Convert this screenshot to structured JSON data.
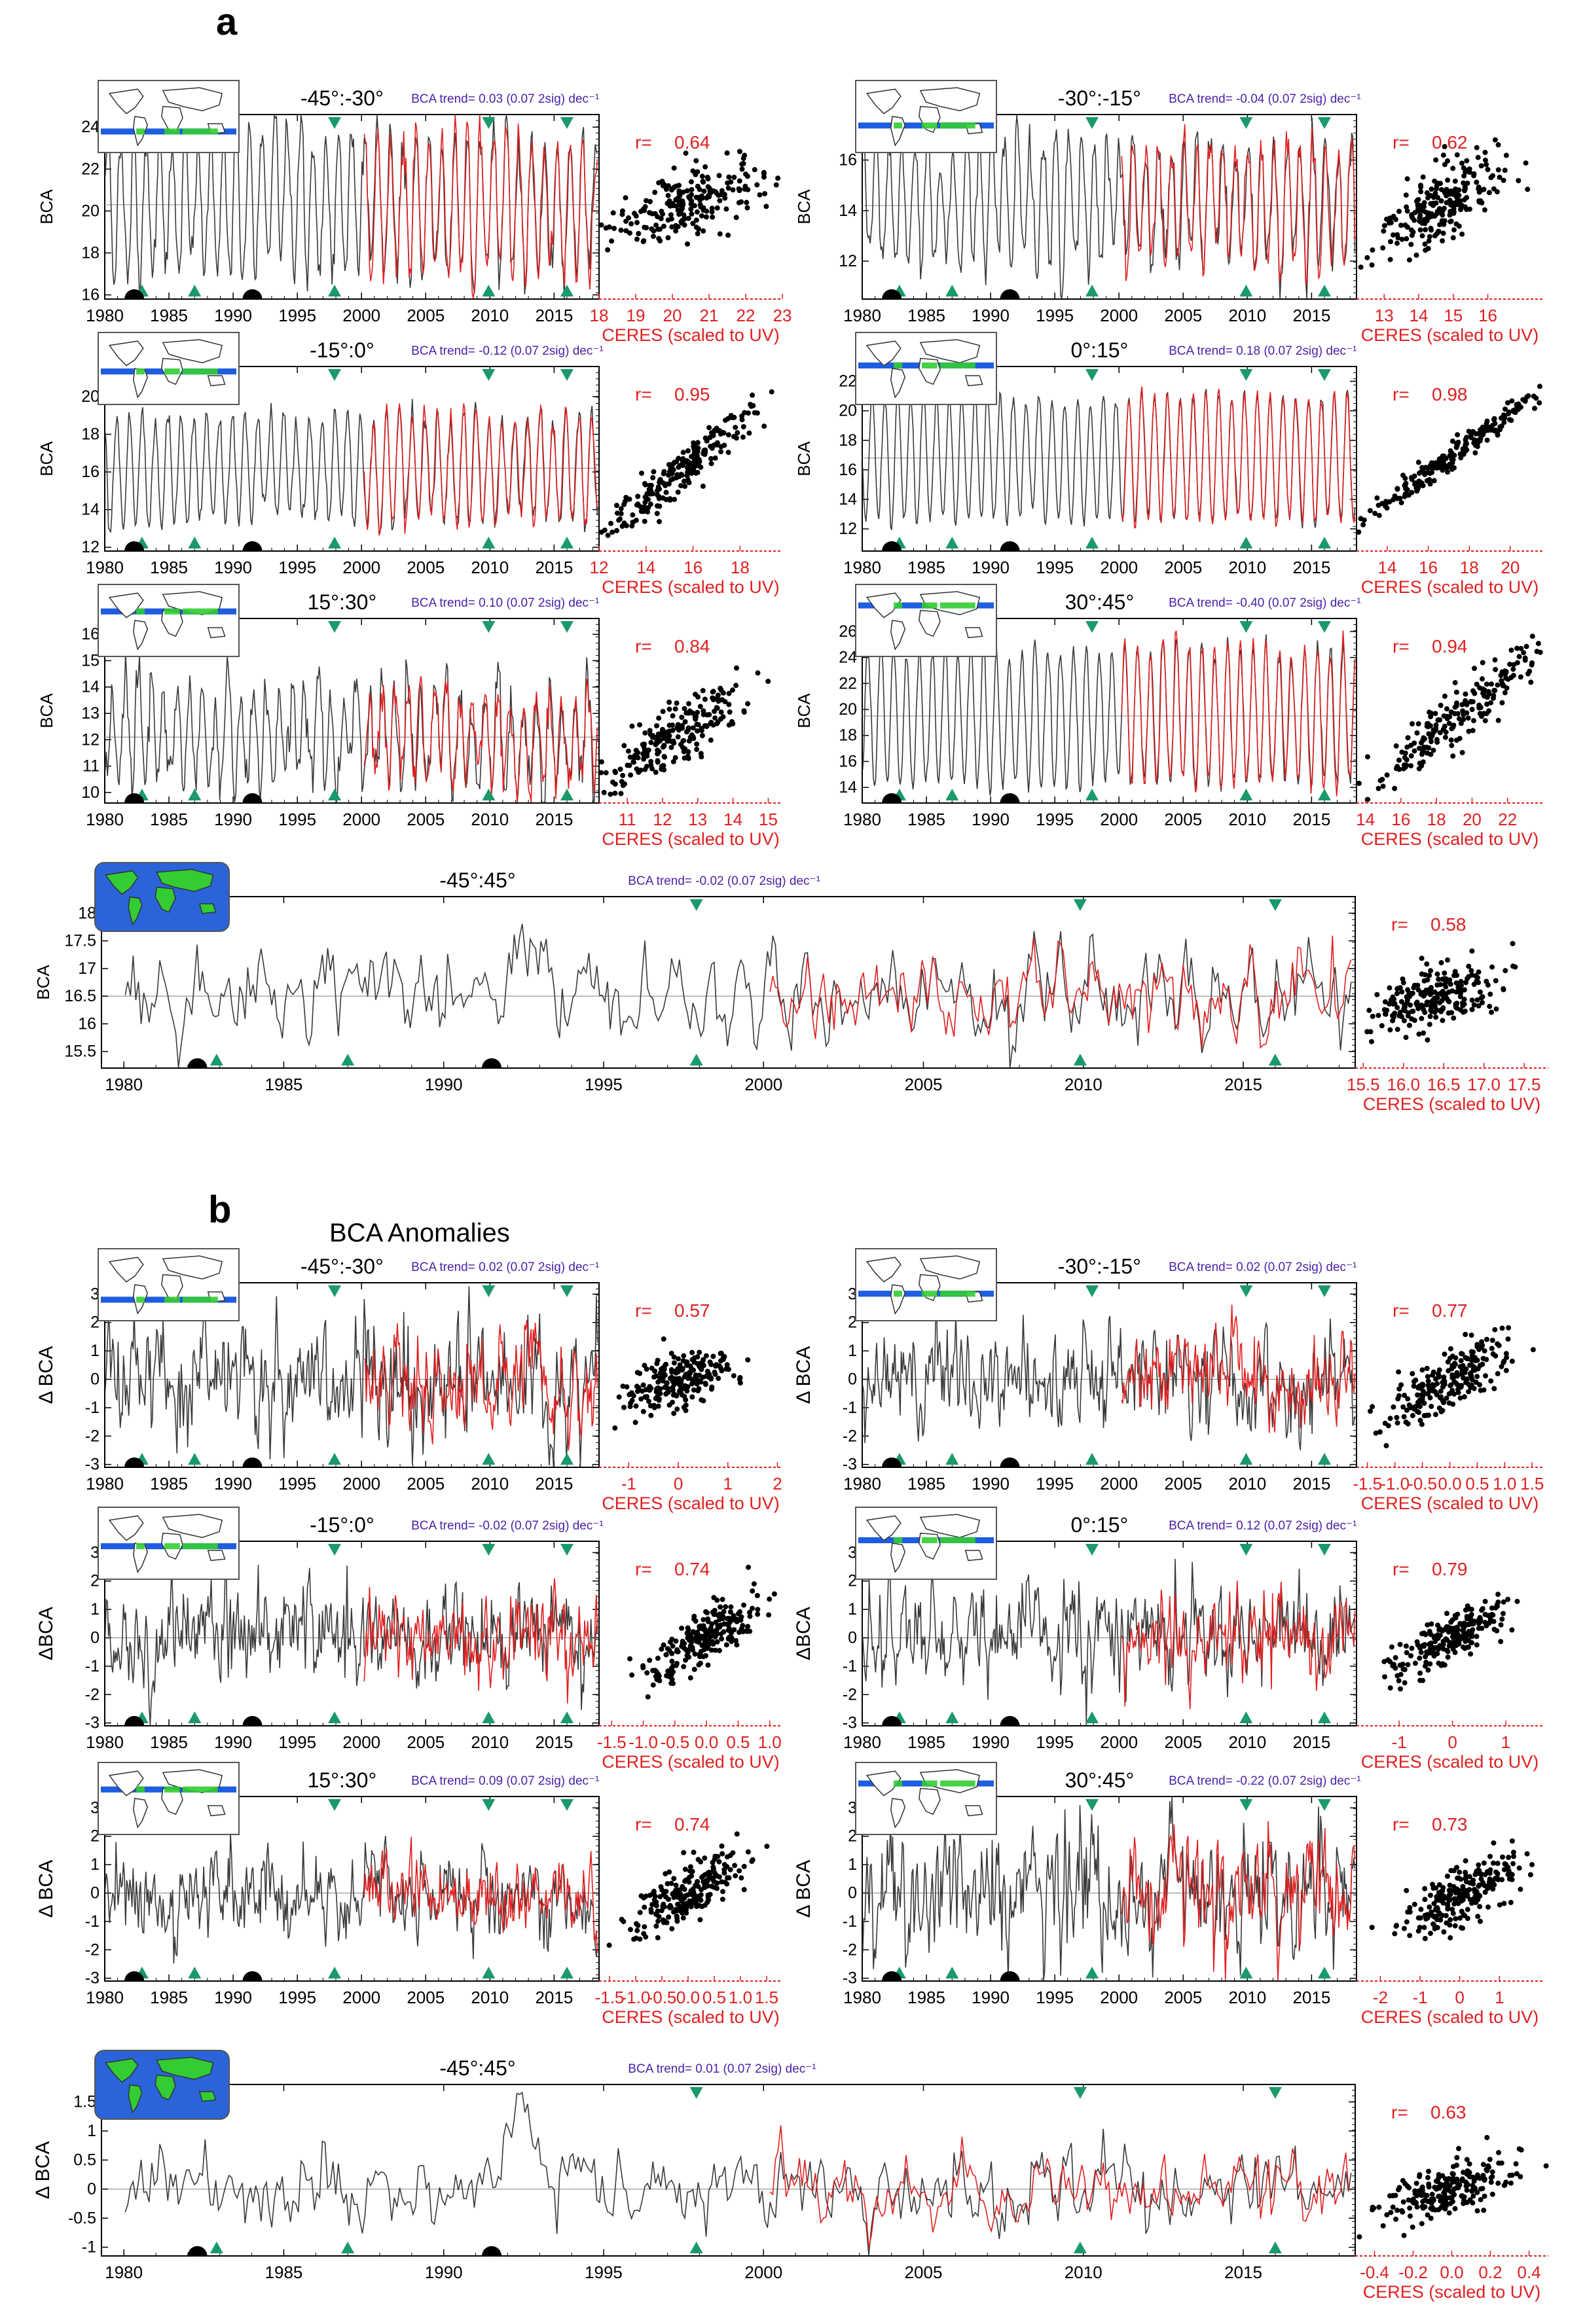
{
  "figure": {
    "section_a": {
      "letter": "a",
      "title": ""
    },
    "section_b": {
      "letter": "b",
      "title": "BCA Anomalies"
    }
  },
  "colors": {
    "bca_line": "#3a3a3a",
    "ceres_line": "#e02020",
    "trend_text": "#4b1fa8",
    "r_text": "#e02020",
    "triangle": "#1a9a6a",
    "volcano": "#000000",
    "ocean_full": "#2a64d8",
    "land": "#33cc33",
    "band": "#1f5de0"
  },
  "labels": {
    "ceres_axis": "CERES (scaled to UV)",
    "bca_axis": "BCA",
    "dbca_axis": "Δ BCA",
    "r_prefix": "r=",
    "trend_unit": "dec⁻¹"
  },
  "chart_data": [
    {
      "id": "a1",
      "section": "a",
      "type": "line",
      "title": "-45°:-30°",
      "trend": "BCA trend=  0.03 (0.07 2sig)  dec⁻¹",
      "r": "0.64",
      "ylabel": "BCA",
      "xlim": [
        1980,
        2018.5
      ],
      "xticks": [
        1980,
        1985,
        1990,
        1995,
        2000,
        2005,
        2010,
        2015
      ],
      "ylim": [
        15.8,
        24.6
      ],
      "yticks": [
        16,
        18,
        20,
        22,
        24
      ],
      "mean": 20.3,
      "amp": 3.2,
      "noise": 0.6,
      "ceres_start": 2000.2,
      "volcanoes": [
        1982.3,
        1991.5
      ],
      "triangles_up": [
        1982.9,
        1987.0,
        1997.9,
        2009.9,
        2016.0
      ],
      "triangles_down": [
        1997.9,
        2009.9,
        2016.0
      ],
      "scatter_xlim": [
        18,
        23
      ],
      "scatter_xticks": [
        "18",
        "19",
        "20",
        "21",
        "22",
        "23"
      ],
      "scatter_ylim": [
        15.8,
        24.6
      ],
      "scatter_slope": 1.0,
      "scatter_xmean": 20.4,
      "scatter_xsd": 1.1,
      "scatter_n": 220,
      "band_lat": [
        -45,
        -30
      ]
    },
    {
      "id": "a2",
      "section": "a",
      "type": "line",
      "title": "-30°:-15°",
      "trend": "BCA trend= -0.04 (0.07 2sig)  dec⁻¹",
      "r": "0.62",
      "ylabel": "BCA",
      "xlim": [
        1980,
        2018.5
      ],
      "xticks": [
        1980,
        1985,
        1990,
        1995,
        2000,
        2005,
        2010,
        2015
      ],
      "ylim": [
        10.5,
        17.8
      ],
      "yticks": [
        12,
        14,
        16
      ],
      "mean": 14.2,
      "amp": 2.3,
      "noise": 0.5,
      "ceres_start": 2000.2,
      "volcanoes": [
        1982.3,
        1991.5
      ],
      "triangles_up": [
        1982.9,
        1987.0,
        1997.9,
        2009.9,
        2016.0
      ],
      "triangles_down": [
        1997.9,
        2009.9,
        2016.0
      ],
      "scatter_xlim": [
        12.2,
        17.6
      ],
      "scatter_xticks": [
        "13",
        "14",
        "15",
        "16"
      ],
      "scatter_ylim": [
        10.5,
        17.8
      ],
      "scatter_slope": 1.1,
      "scatter_xmean": 14.6,
      "scatter_xsd": 0.9,
      "scatter_n": 220,
      "band_lat": [
        -30,
        -15
      ]
    },
    {
      "id": "a3",
      "section": "a",
      "type": "line",
      "title": "-15°:0°",
      "trend": "BCA trend= -0.12 (0.07 2sig)  dec⁻¹",
      "r": "0.95",
      "ylabel": "BCA",
      "xlim": [
        1980,
        2018.5
      ],
      "xticks": [
        1980,
        1985,
        1990,
        1995,
        2000,
        2005,
        2010,
        2015
      ],
      "ylim": [
        11.8,
        21.6
      ],
      "yticks": [
        12,
        14,
        16,
        18,
        20
      ],
      "mean": 16.2,
      "amp": 2.8,
      "noise": 0.35,
      "ceres_start": 2000.2,
      "volcanoes": [
        1982.3,
        1991.5
      ],
      "triangles_up": [
        1982.9,
        1987.0,
        1997.9,
        2009.9,
        2016.0
      ],
      "triangles_down": [
        1997.9,
        2009.9,
        2016.0
      ],
      "scatter_xlim": [
        12,
        19.8
      ],
      "scatter_xticks": [
        "12",
        "14",
        "16",
        "18"
      ],
      "scatter_ylim": [
        11.8,
        21.6
      ],
      "scatter_slope": 1.05,
      "scatter_xmean": 15.6,
      "scatter_xsd": 1.7,
      "scatter_n": 220,
      "band_lat": [
        -15,
        0
      ]
    },
    {
      "id": "a4",
      "section": "a",
      "type": "line",
      "title": "0°:15°",
      "trend": "BCA trend=  0.18 (0.07 2sig)  dec⁻¹",
      "r": "0.98",
      "ylabel": "BCA",
      "xlim": [
        1980,
        2018.5
      ],
      "xticks": [
        1980,
        1985,
        1990,
        1995,
        2000,
        2005,
        2010,
        2015
      ],
      "ylim": [
        10.5,
        23
      ],
      "yticks": [
        12,
        14,
        16,
        18,
        20,
        22
      ],
      "mean": 16.8,
      "amp": 4.2,
      "noise": 0.3,
      "ceres_start": 2000.2,
      "volcanoes": [
        1982.3,
        1991.5
      ],
      "triangles_up": [
        1982.9,
        1987.0,
        1997.9,
        2009.9,
        2016.0
      ],
      "triangles_down": [
        1997.9,
        2009.9,
        2016.0
      ],
      "scatter_xlim": [
        12.5,
        21.6
      ],
      "scatter_xticks": [
        "14",
        "16",
        "18",
        "20"
      ],
      "scatter_ylim": [
        10.5,
        23
      ],
      "scatter_slope": 1.02,
      "scatter_xmean": 17.0,
      "scatter_xsd": 2.2,
      "scatter_n": 220,
      "band_lat": [
        0,
        15
      ]
    },
    {
      "id": "a5",
      "section": "a",
      "type": "line",
      "title": "15°:30°",
      "trend": "BCA trend=  0.10 (0.07 2sig)  dec⁻¹",
      "r": "0.84",
      "ylabel": "BCA",
      "xlim": [
        1980,
        2018.5
      ],
      "xticks": [
        1980,
        1985,
        1990,
        1995,
        2000,
        2005,
        2010,
        2015
      ],
      "ylim": [
        9.6,
        16.6
      ],
      "yticks": [
        10,
        11,
        12,
        13,
        14,
        15,
        16
      ],
      "mean": 12.1,
      "amp": 1.6,
      "noise": 0.55,
      "ceres_start": 2000.2,
      "volcanoes": [
        1982.3,
        1991.5
      ],
      "triangles_up": [
        1982.9,
        1987.0,
        1997.9,
        2009.9,
        2016.0
      ],
      "triangles_down": [
        1997.9,
        2009.9,
        2016.0
      ],
      "scatter_xlim": [
        10.2,
        15.4
      ],
      "scatter_xticks": [
        "11",
        "12",
        "13",
        "14",
        "15"
      ],
      "scatter_ylim": [
        9.6,
        16.6
      ],
      "scatter_slope": 1.0,
      "scatter_xmean": 12.3,
      "scatter_xsd": 1.0,
      "scatter_n": 220,
      "band_lat": [
        15,
        30
      ]
    },
    {
      "id": "a6",
      "section": "a",
      "type": "line",
      "title": "30°:45°",
      "trend": "BCA trend= -0.40 (0.07 2sig)  dec⁻¹",
      "r": "0.94",
      "ylabel": "BCA",
      "xlim": [
        1980,
        2018.5
      ],
      "xticks": [
        1980,
        1985,
        1990,
        1995,
        2000,
        2005,
        2010,
        2015
      ],
      "ylim": [
        12.8,
        27
      ],
      "yticks": [
        14,
        16,
        18,
        20,
        22,
        24,
        26
      ],
      "mean": 19.5,
      "amp": 5.2,
      "noise": 0.5,
      "ceres_start": 2000.2,
      "volcanoes": [
        1982.3,
        1991.5
      ],
      "triangles_up": [
        1982.9,
        1987.0,
        1997.9,
        2009.9,
        2016.0
      ],
      "triangles_down": [
        1997.9,
        2009.9,
        2016.0
      ],
      "scatter_xlim": [
        13.5,
        24
      ],
      "scatter_xticks": [
        "14",
        "16",
        "18",
        "20",
        "22"
      ],
      "scatter_ylim": [
        12.8,
        27
      ],
      "scatter_slope": 1.2,
      "scatter_xmean": 19.2,
      "scatter_xsd": 2.8,
      "scatter_n": 220,
      "band_lat": [
        30,
        45
      ]
    },
    {
      "id": "a7",
      "section": "a",
      "type": "line",
      "title": "-45°:45°",
      "trend": "BCA trend= -0.02 (0.07 2sig)  dec⁻¹",
      "r": "0.58",
      "ylabel": "BCA",
      "xlim": [
        1979.3,
        2018.5
      ],
      "xticks": [
        1980,
        1985,
        1990,
        1995,
        2000,
        2005,
        2010,
        2015
      ],
      "ylim": [
        15.2,
        18.3
      ],
      "yticks": [
        15.5,
        16.0,
        16.5,
        17.0,
        17.5,
        18.0
      ],
      "mean": 16.5,
      "amp": 0.25,
      "noise": 0.35,
      "ceres_start": 2000.2,
      "pinatubo": true,
      "volcanoes": [
        1982.3,
        1991.5
      ],
      "triangles_up": [
        1982.9,
        1987.0,
        1997.9,
        2009.9,
        2016.0
      ],
      "triangles_down": [
        1997.9,
        2009.9,
        2016.0
      ],
      "scatter_xlim": [
        15.4,
        17.8
      ],
      "scatter_xticks": [
        "15.5",
        "16.0",
        "16.5",
        "17.0",
        "17.5"
      ],
      "scatter_ylim": [
        15.2,
        18.3
      ],
      "scatter_slope": 0.8,
      "scatter_xmean": 16.4,
      "scatter_xsd": 0.4,
      "scatter_n": 220,
      "band_lat": [
        -45,
        45
      ]
    },
    {
      "id": "b1",
      "section": "b",
      "type": "line",
      "title": "-45°:-30°",
      "trend": "BCA trend=  0.02 (0.07 2sig)  dec⁻¹",
      "r": "0.57",
      "ylabel": "Δ BCA",
      "xlim": [
        1980,
        2018.5
      ],
      "xticks": [
        1980,
        1985,
        1990,
        1995,
        2000,
        2005,
        2010,
        2015
      ],
      "ylim": [
        -3.1,
        3.4
      ],
      "yticks": [
        -3,
        -2,
        -1,
        0,
        1,
        2,
        3
      ],
      "mean": 0,
      "amp": 0,
      "noise": 0.9,
      "ceres_start": 2000.2,
      "volcanoes": [
        1982.3,
        1991.5
      ],
      "triangles_up": [
        1982.9,
        1987.0,
        1997.9,
        2009.9,
        2016.0
      ],
      "triangles_down": [
        1997.9,
        2009.9,
        2016.0
      ],
      "scatter_xlim": [
        -1.6,
        2.1
      ],
      "scatter_xticks": [
        "-1",
        "0",
        "1",
        "2"
      ],
      "scatter_ylim": [
        -3.1,
        3.4
      ],
      "scatter_slope": 1.0,
      "scatter_xmean": 0,
      "scatter_xsd": 0.55,
      "scatter_n": 220,
      "band_lat": [
        -45,
        -30
      ]
    },
    {
      "id": "b2",
      "section": "b",
      "type": "line",
      "title": "-30°:-15°",
      "trend": "BCA trend=  0.02 (0.07 2sig)  dec⁻¹",
      "r": "0.77",
      "ylabel": "Δ BCA",
      "xlim": [
        1980,
        2018.5
      ],
      "xticks": [
        1980,
        1985,
        1990,
        1995,
        2000,
        2005,
        2010,
        2015
      ],
      "ylim": [
        -3.1,
        3.4
      ],
      "yticks": [
        -3,
        -2,
        -1,
        0,
        1,
        2,
        3
      ],
      "mean": 0,
      "amp": 0,
      "noise": 0.8,
      "ceres_start": 2000.2,
      "volcanoes": [
        1982.3,
        1991.5
      ],
      "triangles_up": [
        1982.9,
        1987.0,
        1997.9,
        2009.9,
        2016.0
      ],
      "triangles_down": [
        1997.9,
        2009.9,
        2016.0
      ],
      "scatter_xlim": [
        -1.7,
        1.7
      ],
      "scatter_xticks": [
        "-1.5",
        "-1.0",
        "-0.5",
        "0.0",
        "0.5",
        "1.0",
        "1.5"
      ],
      "scatter_ylim": [
        -3.1,
        3.4
      ],
      "scatter_slope": 1.4,
      "scatter_xmean": 0,
      "scatter_xsd": 0.6,
      "scatter_n": 220,
      "band_lat": [
        -30,
        -15
      ]
    },
    {
      "id": "b3",
      "section": "b",
      "type": "line",
      "title": "-15°:0°",
      "trend": "BCA trend= -0.02 (0.07 2sig)  dec⁻¹",
      "r": "0.74",
      "ylabel": "ΔBCA",
      "xlim": [
        1980,
        2018.5
      ],
      "xticks": [
        1980,
        1985,
        1990,
        1995,
        2000,
        2005,
        2010,
        2015
      ],
      "ylim": [
        -3.1,
        3.4
      ],
      "yticks": [
        -3,
        -2,
        -1,
        0,
        1,
        2,
        3
      ],
      "mean": 0,
      "amp": 0,
      "noise": 0.8,
      "ceres_start": 2000.2,
      "volcanoes": [
        1982.3,
        1991.5
      ],
      "triangles_up": [
        1982.9,
        1987.0,
        1997.9,
        2009.9,
        2016.0
      ],
      "triangles_down": [
        1997.9,
        2009.9,
        2016.0
      ],
      "scatter_xlim": [
        -1.7,
        1.2
      ],
      "scatter_xticks": [
        "-1.5",
        "-1.0",
        "-0.5",
        "0.0",
        "0.5",
        "1.0"
      ],
      "scatter_ylim": [
        -3.1,
        3.4
      ],
      "scatter_slope": 1.5,
      "scatter_xmean": 0,
      "scatter_xsd": 0.5,
      "scatter_n": 220,
      "band_lat": [
        -15,
        0
      ]
    },
    {
      "id": "b4",
      "section": "b",
      "type": "line",
      "title": "0°:15°",
      "trend": "BCA trend=  0.12 (0.07 2sig)  dec⁻¹",
      "r": "0.79",
      "ylabel": "ΔBCA",
      "xlim": [
        1980,
        2018.5
      ],
      "xticks": [
        1980,
        1985,
        1990,
        1995,
        2000,
        2005,
        2010,
        2015
      ],
      "ylim": [
        -3.1,
        3.4
      ],
      "yticks": [
        -3,
        -2,
        -1,
        0,
        1,
        2,
        3
      ],
      "mean": 0,
      "amp": 0,
      "noise": 0.8,
      "ceres_start": 2000.2,
      "volcanoes": [
        1982.3,
        1991.5
      ],
      "triangles_up": [
        1982.9,
        1987.0,
        1997.9,
        2009.9,
        2016.0
      ],
      "triangles_down": [
        1997.9,
        2009.9,
        2016.0
      ],
      "scatter_xlim": [
        -1.8,
        1.7
      ],
      "scatter_xticks": [
        "-1",
        "0",
        "1"
      ],
      "scatter_ylim": [
        -3.1,
        3.4
      ],
      "scatter_slope": 1.2,
      "scatter_xmean": 0,
      "scatter_xsd": 0.6,
      "scatter_n": 220,
      "band_lat": [
        0,
        15
      ]
    },
    {
      "id": "b5",
      "section": "b",
      "type": "line",
      "title": "15°:30°",
      "trend": "BCA trend=  0.09 (0.07 2sig)  dec⁻¹",
      "r": "0.74",
      "ylabel": "Δ BCA",
      "xlim": [
        1980,
        2018.5
      ],
      "xticks": [
        1980,
        1985,
        1990,
        1995,
        2000,
        2005,
        2010,
        2015
      ],
      "ylim": [
        -3.1,
        3.4
      ],
      "yticks": [
        -3,
        -2,
        -1,
        0,
        1,
        2,
        3
      ],
      "mean": 0,
      "amp": 0,
      "noise": 0.7,
      "ceres_start": 2000.2,
      "volcanoes": [
        1982.3,
        1991.5
      ],
      "triangles_up": [
        1982.9,
        1987.0,
        1997.9,
        2009.9,
        2016.0
      ],
      "triangles_down": [
        1997.9,
        2009.9,
        2016.0
      ],
      "scatter_xlim": [
        -1.7,
        1.8
      ],
      "scatter_xticks": [
        "-1.5",
        "-1.0",
        "-0.5",
        "0.0",
        "0.5",
        "1.0",
        "1.5"
      ],
      "scatter_ylim": [
        -3.1,
        3.4
      ],
      "scatter_slope": 1.3,
      "scatter_xmean": 0,
      "scatter_xsd": 0.55,
      "scatter_n": 220,
      "band_lat": [
        15,
        30
      ]
    },
    {
      "id": "b6",
      "section": "b",
      "type": "line",
      "title": "30°:45°",
      "trend": "BCA trend= -0.22 (0.07 2sig)  dec⁻¹",
      "r": "0.73",
      "ylabel": "Δ BCA",
      "xlim": [
        1980,
        2018.5
      ],
      "xticks": [
        1980,
        1985,
        1990,
        1995,
        2000,
        2005,
        2010,
        2015
      ],
      "ylim": [
        -3.1,
        3.4
      ],
      "yticks": [
        -3,
        -2,
        -1,
        0,
        1,
        2,
        3
      ],
      "mean": 0,
      "amp": 0,
      "noise": 1.0,
      "ceres_start": 2000.2,
      "volcanoes": [
        1982.3,
        1991.5
      ],
      "triangles_up": [
        1982.9,
        1987.0,
        1997.9,
        2009.9,
        2016.0
      ],
      "triangles_down": [
        1997.9,
        2009.9,
        2016.0
      ],
      "scatter_xlim": [
        -2.6,
        2.1
      ],
      "scatter_xticks": [
        "-2",
        "-1",
        "0",
        "1"
      ],
      "scatter_ylim": [
        -3.1,
        3.4
      ],
      "scatter_slope": 1.0,
      "scatter_xmean": 0.1,
      "scatter_xsd": 0.7,
      "scatter_n": 220,
      "band_lat": [
        30,
        45
      ]
    },
    {
      "id": "b7",
      "section": "b",
      "type": "line",
      "title": "-45°:45°",
      "trend": "BCA trend=  0.01 (0.07 2sig)  dec⁻¹",
      "r": "0.63",
      "ylabel": "Δ BCA",
      "xlim": [
        1979.3,
        2018.5
      ],
      "xticks": [
        1980,
        1985,
        1990,
        1995,
        2000,
        2005,
        2010,
        2015
      ],
      "ylim": [
        -1.15,
        1.8
      ],
      "yticks": [
        -1.0,
        -0.5,
        0.0,
        0.5,
        1.0,
        1.5
      ],
      "mean": 0,
      "amp": 0,
      "noise": 0.3,
      "ceres_start": 2000.2,
      "pinatubo": true,
      "volcanoes": [
        1982.3,
        1991.5
      ],
      "triangles_up": [
        1982.9,
        1987.0,
        1997.9,
        2009.9,
        2016.0
      ],
      "triangles_down": [
        1997.9,
        2009.9,
        2016.0
      ],
      "scatter_xlim": [
        -0.5,
        0.5
      ],
      "scatter_xticks": [
        "-0.4",
        "-0.2",
        "0.0",
        "0.2",
        "0.4"
      ],
      "scatter_ylim": [
        -1.15,
        1.8
      ],
      "scatter_slope": 1.6,
      "scatter_xmean": 0,
      "scatter_xsd": 0.17,
      "scatter_n": 220,
      "band_lat": [
        -45,
        45
      ]
    }
  ]
}
